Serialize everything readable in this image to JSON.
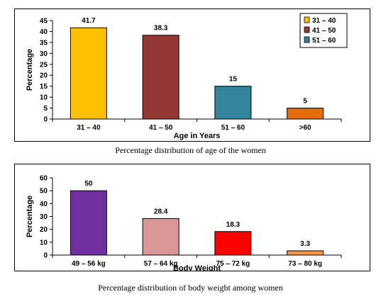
{
  "charts": [
    {
      "caption": "Percentage distribution of age of the women",
      "chart_data": {
        "type": "bar",
        "categories": [
          "31 – 40",
          "41 – 50",
          "51 – 60",
          ">60"
        ],
        "values": [
          41.7,
          38.3,
          15,
          5
        ],
        "value_labels": [
          "41.7",
          "38.3",
          "15",
          "5"
        ],
        "colors": [
          "#FFC000",
          "#953735",
          "#31849B",
          "#E46C0A"
        ],
        "xlabel": "Age in Years",
        "ylabel": "Percentage",
        "ylim": [
          0,
          45
        ],
        "ytick_step": 5,
        "grid": false,
        "legend": {
          "placement": "top-right",
          "entries": [
            {
              "label": "31 – 40",
              "color": "#FFC000"
            },
            {
              "label": "41 – 50",
              "color": "#953735"
            },
            {
              "label": "51 – 60",
              "color": "#31849B"
            }
          ]
        }
      }
    },
    {
      "caption": "Percentage distribution of body weight among women",
      "chart_data": {
        "type": "bar",
        "categories": [
          "49 – 56 kg",
          "57 – 64 kg",
          "75 – 72 kg",
          "73 – 80 kg"
        ],
        "values": [
          50,
          28.4,
          18.3,
          3.3
        ],
        "value_labels": [
          "50",
          "28.4",
          "18.3",
          "3.3"
        ],
        "colors": [
          "#7030A0",
          "#D99694",
          "#FF0000",
          "#F79646"
        ],
        "xlabel": "Body Weight",
        "ylabel": "Percentage",
        "ylim": [
          0,
          60
        ],
        "ytick_step": 10,
        "grid": false
      }
    }
  ]
}
